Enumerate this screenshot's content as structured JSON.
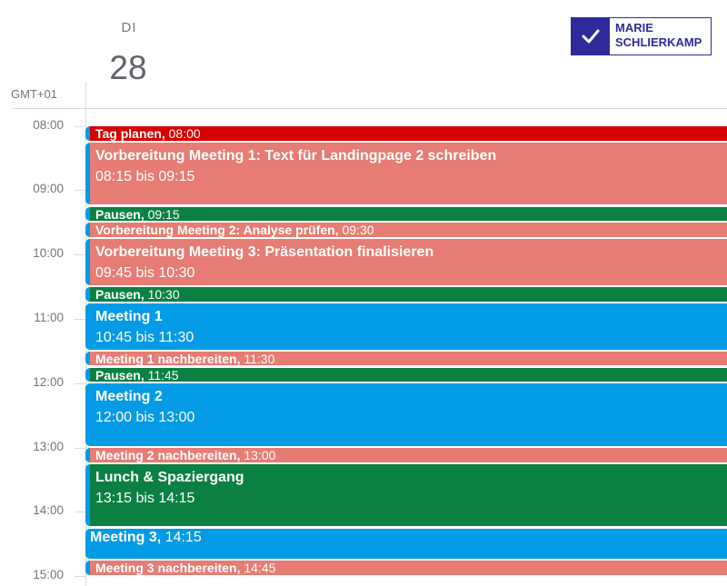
{
  "header": {
    "day_name": "DI",
    "day_number": "28",
    "timezone": "GMT+01"
  },
  "logo": {
    "line1": "MARIE",
    "line2": "SCHLIERKAMP",
    "color": "#2e2a9b"
  },
  "hours": [
    "08:00",
    "09:00",
    "10:00",
    "11:00",
    "12:00",
    "13:00",
    "14:00",
    "15:00"
  ],
  "colors": {
    "red": "#d50000",
    "salmon": "#e67c73",
    "green": "#0b8043",
    "blue": "#039be5"
  },
  "events": [
    {
      "title": "Tag planen",
      "time": "08:00",
      "color": "#d50000",
      "layout": "short"
    },
    {
      "title": "Vorbereitung Meeting 1: Text für Landingpage 2 schreiben",
      "time": "08:15 bis 09:15",
      "color": "#e67c73",
      "layout": "tall"
    },
    {
      "title": "Pausen",
      "time": "09:15",
      "color": "#0b8043",
      "layout": "short"
    },
    {
      "title": "Vorbereitung Meeting 2: Analyse prüfen",
      "time": "09:30",
      "color": "#e67c73",
      "layout": "short"
    },
    {
      "title": "Vorbereitung Meeting 3: Präsentation finalisieren",
      "time": "09:45 bis 10:30",
      "color": "#e67c73",
      "layout": "tall"
    },
    {
      "title": "Pausen",
      "time": "10:30",
      "color": "#0b8043",
      "layout": "short"
    },
    {
      "title": "Meeting 1",
      "time": "10:45 bis 11:30",
      "color": "#039be5",
      "layout": "tall"
    },
    {
      "title": "Meeting 1 nachbereiten",
      "time": "11:30",
      "color": "#e67c73",
      "layout": "short"
    },
    {
      "title": "Pausen",
      "time": "11:45",
      "color": "#0b8043",
      "layout": "short"
    },
    {
      "title": "Meeting 2",
      "time": "12:00 bis 13:00",
      "color": "#039be5",
      "layout": "tall"
    },
    {
      "title": "Meeting 2 nachbereiten",
      "time": "13:00",
      "color": "#e67c73",
      "layout": "short"
    },
    {
      "title": "Lunch & Spaziergang",
      "time": "13:15 bis 14:15",
      "color": "#0b8043",
      "layout": "tall"
    },
    {
      "title": "Meeting 3",
      "time": "14:15",
      "color": "#039be5",
      "layout": "medium"
    },
    {
      "title": "Meeting 3 nachbereiten",
      "time": "14:45",
      "color": "#e67c73",
      "layout": "short"
    }
  ]
}
